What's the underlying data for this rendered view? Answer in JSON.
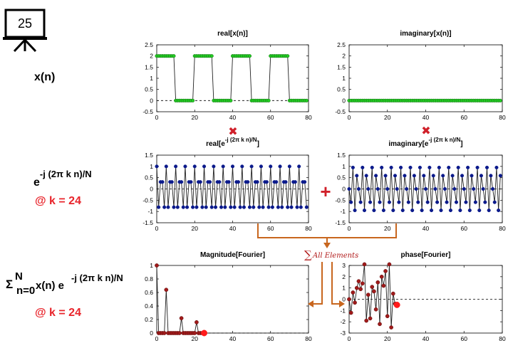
{
  "slide_number": "25",
  "left_labels": {
    "signal": "x(n)",
    "basis_base": "e",
    "basis_exponent": "-j (2π k n)/N",
    "basis_k": "@ k = 24",
    "sum_symbol": "Σ",
    "sum_upper": "N",
    "sum_lower": "n=0",
    "sum_term_1": "x(n) e",
    "sum_exponent": "-j (2π k n)/N",
    "sum_k": "@ k = 24"
  },
  "flow": {
    "multiply_glyph": "✖",
    "add_glyph": "+",
    "sum_glyph": "∑",
    "sum_text": "All Elements"
  },
  "colors": {
    "green": "#22cc22",
    "navy": "#0b1a8c",
    "dark_red": "#a01a1a",
    "red_marker": "#ff1a1a",
    "accent_red": "#e8242b",
    "arrow_orange": "#c8661e"
  },
  "chart_data": [
    {
      "id": "real-x",
      "type": "line",
      "title": "real[x(n)]",
      "x": [
        0,
        1,
        2,
        3,
        4,
        5,
        6,
        7,
        8,
        9,
        10,
        11,
        12,
        13,
        14,
        15,
        16,
        17,
        18,
        19,
        20,
        21,
        22,
        23,
        24,
        25,
        26,
        27,
        28,
        29,
        30,
        31,
        32,
        33,
        34,
        35,
        36,
        37,
        38,
        39,
        40,
        41,
        42,
        43,
        44,
        45,
        46,
        47,
        48,
        49,
        50,
        51,
        52,
        53,
        54,
        55,
        56,
        57,
        58,
        59,
        60,
        61,
        62,
        63,
        64,
        65,
        66,
        67,
        68,
        69,
        70,
        71,
        72,
        73,
        74,
        75,
        76,
        77,
        78,
        79
      ],
      "values": [
        2,
        2,
        2,
        2,
        2,
        2,
        2,
        2,
        2,
        2,
        0,
        0,
        0,
        0,
        0,
        0,
        0,
        0,
        0,
        0,
        2,
        2,
        2,
        2,
        2,
        2,
        2,
        2,
        2,
        2,
        0,
        0,
        0,
        0,
        0,
        0,
        0,
        0,
        0,
        0,
        2,
        2,
        2,
        2,
        2,
        2,
        2,
        2,
        2,
        2,
        0,
        0,
        0,
        0,
        0,
        0,
        0,
        0,
        0,
        0,
        2,
        2,
        2,
        2,
        2,
        2,
        2,
        2,
        2,
        2,
        0,
        0,
        0,
        0,
        0,
        0,
        0,
        0,
        0,
        0
      ],
      "xlim": [
        0,
        80
      ],
      "ylim": [
        -0.5,
        2.5
      ],
      "xticks": [
        "0",
        "20",
        "40",
        "60",
        "80"
      ],
      "yticks": [
        "-0.5",
        "0",
        "0.5",
        "1",
        "1.5",
        "2",
        "2.5"
      ],
      "zero_line": true,
      "marker": "green"
    },
    {
      "id": "imag-x",
      "type": "line",
      "title": "imaginary[x(n)]",
      "x": [
        0,
        1,
        2,
        3,
        4,
        5,
        6,
        7,
        8,
        9,
        10,
        11,
        12,
        13,
        14,
        15,
        16,
        17,
        18,
        19,
        20,
        21,
        22,
        23,
        24,
        25,
        26,
        27,
        28,
        29,
        30,
        31,
        32,
        33,
        34,
        35,
        36,
        37,
        38,
        39,
        40,
        41,
        42,
        43,
        44,
        45,
        46,
        47,
        48,
        49,
        50,
        51,
        52,
        53,
        54,
        55,
        56,
        57,
        58,
        59,
        60,
        61,
        62,
        63,
        64,
        65,
        66,
        67,
        68,
        69,
        70,
        71,
        72,
        73,
        74,
        75,
        76,
        77,
        78,
        79
      ],
      "values": [
        0,
        0,
        0,
        0,
        0,
        0,
        0,
        0,
        0,
        0,
        0,
        0,
        0,
        0,
        0,
        0,
        0,
        0,
        0,
        0,
        0,
        0,
        0,
        0,
        0,
        0,
        0,
        0,
        0,
        0,
        0,
        0,
        0,
        0,
        0,
        0,
        0,
        0,
        0,
        0,
        0,
        0,
        0,
        0,
        0,
        0,
        0,
        0,
        0,
        0,
        0,
        0,
        0,
        0,
        0,
        0,
        0,
        0,
        0,
        0,
        0,
        0,
        0,
        0,
        0,
        0,
        0,
        0,
        0,
        0,
        0,
        0,
        0,
        0,
        0,
        0,
        0,
        0,
        0,
        0
      ],
      "xlim": [
        0,
        80
      ],
      "ylim": [
        -0.5,
        2.5
      ],
      "xticks": [
        "0",
        "20",
        "40",
        "60",
        "80"
      ],
      "yticks": [
        "-0.5",
        "0",
        "0.5",
        "1",
        "1.5",
        "2",
        "2.5"
      ],
      "zero_line": true,
      "marker": "green"
    },
    {
      "id": "real-basis",
      "type": "line",
      "title_base": "real[e",
      "title_sup": "-j (2π k n)/N",
      "title_end": "]",
      "x": [
        0,
        1,
        2,
        3,
        4,
        5,
        6,
        7,
        8,
        9,
        10,
        11,
        12,
        13,
        14,
        15,
        16,
        17,
        18,
        19,
        20,
        21,
        22,
        23,
        24,
        25,
        26,
        27,
        28,
        29,
        30,
        31,
        32,
        33,
        34,
        35,
        36,
        37,
        38,
        39,
        40,
        41,
        42,
        43,
        44,
        45,
        46,
        47,
        48,
        49,
        50,
        51,
        52,
        53,
        54,
        55,
        56,
        57,
        58,
        59,
        60,
        61,
        62,
        63,
        64,
        65,
        66,
        67,
        68,
        69,
        70,
        71,
        72,
        73,
        74,
        75,
        76,
        77,
        78,
        79
      ],
      "values": [
        1,
        -0.81,
        0.31,
        0.31,
        -0.81,
        1,
        -0.81,
        0.31,
        0.31,
        -0.81,
        1,
        -0.81,
        0.31,
        0.31,
        -0.81,
        1,
        -0.81,
        0.31,
        0.31,
        -0.81,
        1,
        -0.81,
        0.31,
        0.31,
        -0.81,
        1,
        -0.81,
        0.31,
        0.31,
        -0.81,
        1,
        -0.81,
        0.31,
        0.31,
        -0.81,
        1,
        -0.81,
        0.31,
        0.31,
        -0.81,
        1,
        -0.81,
        0.31,
        0.31,
        -0.81,
        1,
        -0.81,
        0.31,
        0.31,
        -0.81,
        1,
        -0.81,
        0.31,
        0.31,
        -0.81,
        1,
        -0.81,
        0.31,
        0.31,
        -0.81,
        1,
        -0.81,
        0.31,
        0.31,
        -0.81,
        1,
        -0.81,
        0.31,
        0.31,
        -0.81,
        1,
        -0.81,
        0.31,
        0.31,
        -0.81,
        1,
        -0.81,
        0.31,
        0.31,
        -0.81
      ],
      "xlim": [
        0,
        80
      ],
      "ylim": [
        -1.5,
        1.5
      ],
      "xticks": [
        "0",
        "20",
        "40",
        "60",
        "80"
      ],
      "yticks": [
        "-1.5",
        "-1",
        "-0.5",
        "0",
        "0.5",
        "1",
        "1.5"
      ],
      "zero_line": true,
      "marker": "navy"
    },
    {
      "id": "imag-basis",
      "type": "line",
      "title_base": "imaginary[e",
      "title_sup": "-j (2π k n)/N",
      "title_end": "]",
      "x": [
        0,
        1,
        2,
        3,
        4,
        5,
        6,
        7,
        8,
        9,
        10,
        11,
        12,
        13,
        14,
        15,
        16,
        17,
        18,
        19,
        20,
        21,
        22,
        23,
        24,
        25,
        26,
        27,
        28,
        29,
        30,
        31,
        32,
        33,
        34,
        35,
        36,
        37,
        38,
        39,
        40,
        41,
        42,
        43,
        44,
        45,
        46,
        47,
        48,
        49,
        50,
        51,
        52,
        53,
        54,
        55,
        56,
        57,
        58,
        59,
        60,
        61,
        62,
        63,
        64,
        65,
        66,
        67,
        68,
        69,
        70,
        71,
        72,
        73,
        74,
        75,
        76,
        77,
        78,
        79
      ],
      "values": [
        0,
        -0.59,
        0.95,
        -0.95,
        0.59,
        0,
        -0.59,
        0.95,
        -0.95,
        0.59,
        0,
        -0.59,
        0.95,
        -0.95,
        0.59,
        0,
        -0.59,
        0.95,
        -0.95,
        0.59,
        0,
        -0.59,
        0.95,
        -0.95,
        0.59,
        0,
        -0.59,
        0.95,
        -0.95,
        0.59,
        0,
        -0.59,
        0.95,
        -0.95,
        0.59,
        0,
        -0.59,
        0.95,
        -0.95,
        0.59,
        0,
        -0.59,
        0.95,
        -0.95,
        0.59,
        0,
        -0.59,
        0.95,
        -0.95,
        0.59,
        0,
        -0.59,
        0.95,
        -0.95,
        0.59,
        0,
        -0.59,
        0.95,
        -0.95,
        0.59,
        0,
        -0.59,
        0.95,
        -0.95,
        0.59,
        0,
        -0.59,
        0.95,
        -0.95,
        0.59,
        0,
        -0.59,
        0.95,
        -0.95,
        0.59,
        0,
        -0.59,
        0.95,
        -0.95,
        0.59
      ],
      "xlim": [
        0,
        80
      ],
      "ylim": [
        -1.5,
        1.5
      ],
      "xticks": [
        "0",
        "20",
        "40",
        "60",
        "80"
      ],
      "yticks": [
        "-1.5",
        "-1",
        "-0.5",
        "0",
        "0.5",
        "1",
        "1.5"
      ],
      "zero_line": true,
      "marker": "navy"
    },
    {
      "id": "magnitude",
      "type": "line",
      "title": "Magnitude[Fourier]",
      "x": [
        0,
        1,
        2,
        3,
        4,
        5,
        6,
        7,
        8,
        9,
        10,
        11,
        12,
        13,
        14,
        15,
        16,
        17,
        18,
        19,
        20,
        21,
        22,
        23,
        24,
        25
      ],
      "values": [
        1,
        0,
        0,
        0,
        0,
        0.64,
        0,
        0,
        0,
        0,
        0,
        0,
        0,
        0.22,
        0,
        0,
        0,
        0,
        0,
        0,
        0,
        0.16,
        0,
        0,
        0,
        0
      ],
      "xlim": [
        0,
        80
      ],
      "ylim": [
        0,
        1
      ],
      "xticks": [
        "0",
        "20",
        "40",
        "60",
        "80"
      ],
      "yticks": [
        "0",
        "0.2",
        "0.4",
        "0.6",
        "0.8",
        "1"
      ],
      "zero_line": false,
      "baseline_dashed": true,
      "marker": "dark_red",
      "highlight": {
        "x": 25,
        "y": 0
      }
    },
    {
      "id": "phase",
      "type": "line",
      "title": "phase[Fourier]",
      "x": [
        0,
        1,
        2,
        3,
        4,
        5,
        6,
        7,
        8,
        9,
        10,
        11,
        12,
        13,
        14,
        15,
        16,
        17,
        18,
        19,
        20,
        21,
        22,
        23,
        24,
        25
      ],
      "values": [
        0,
        -1.2,
        0.6,
        -0.3,
        1.0,
        1.6,
        0.9,
        1.4,
        3.1,
        -1.9,
        0.4,
        -1.7,
        1.1,
        0.7,
        -0.9,
        1.5,
        -2.2,
        2.0,
        1.2,
        2.5,
        -1.5,
        3.1,
        -2.5,
        0.5,
        -0.4,
        -0.5
      ],
      "xlim": [
        0,
        80
      ],
      "ylim": [
        -3,
        3
      ],
      "xticks": [
        "0",
        "20",
        "40",
        "60",
        "80"
      ],
      "yticks": [
        "-3",
        "-2",
        "-1",
        "0",
        "1",
        "2",
        "3"
      ],
      "zero_line": true,
      "marker": "dark_red",
      "highlight": {
        "x": 25,
        "y": -0.5
      }
    }
  ]
}
